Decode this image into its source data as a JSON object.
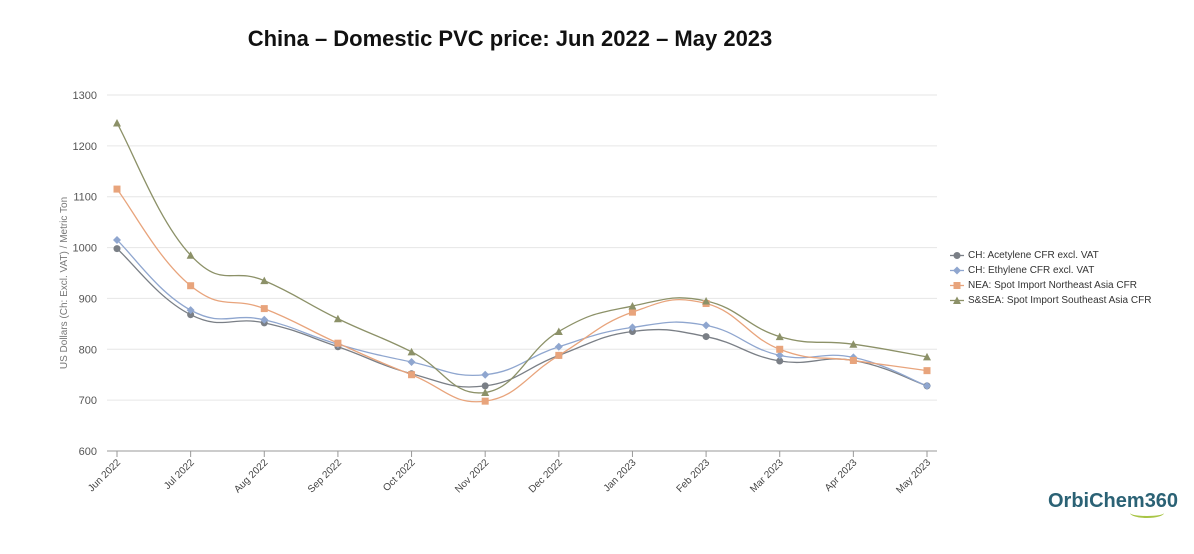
{
  "chart_data": {
    "type": "line",
    "title": "China – Domestic PVC price: Jun 2022 – May 2023",
    "ylabel": "US Dollars (Ch: Excl. VAT) / Metric Ton",
    "xlabel": "",
    "ylim": [
      600,
      1300
    ],
    "yticks": [
      "600",
      "700",
      "800",
      "900",
      "1000",
      "1100",
      "1200",
      "1300"
    ],
    "categories": [
      "Jun 2022",
      "Jul 2022",
      "Aug 2022",
      "Sep 2022",
      "Oct 2022",
      "Nov 2022",
      "Dec 2022",
      "Jan 2023",
      "Feb 2023",
      "Mar 2023",
      "Apr 2023",
      "May 2023"
    ],
    "grid": true,
    "legend_position": "right",
    "series": [
      {
        "name": "CH: Acetylene CFR excl. VAT",
        "color": "#7a7f86",
        "marker": "circle",
        "values": [
          998,
          868,
          852,
          805,
          752,
          728,
          788,
          835,
          825,
          777,
          778,
          728
        ]
      },
      {
        "name": "CH: Ethylene CFR excl. VAT",
        "color": "#8fa6cf",
        "marker": "diamond",
        "values": [
          1015,
          877,
          858,
          810,
          775,
          750,
          805,
          843,
          847,
          788,
          784,
          728
        ]
      },
      {
        "name": "NEA: Spot Import Northeast Asia CFR",
        "color": "#e8a47c",
        "marker": "square",
        "values": [
          1115,
          925,
          880,
          812,
          750,
          698,
          788,
          873,
          890,
          800,
          778,
          758
        ]
      },
      {
        "name": "S&SEA: Spot Import Southeast Asia CFR",
        "color": "#8c9168",
        "marker": "triangle",
        "values": [
          1245,
          985,
          935,
          860,
          795,
          715,
          835,
          885,
          895,
          825,
          810,
          785
        ]
      }
    ]
  },
  "logo": {
    "text": "OrbiChem",
    "number": "360"
  }
}
